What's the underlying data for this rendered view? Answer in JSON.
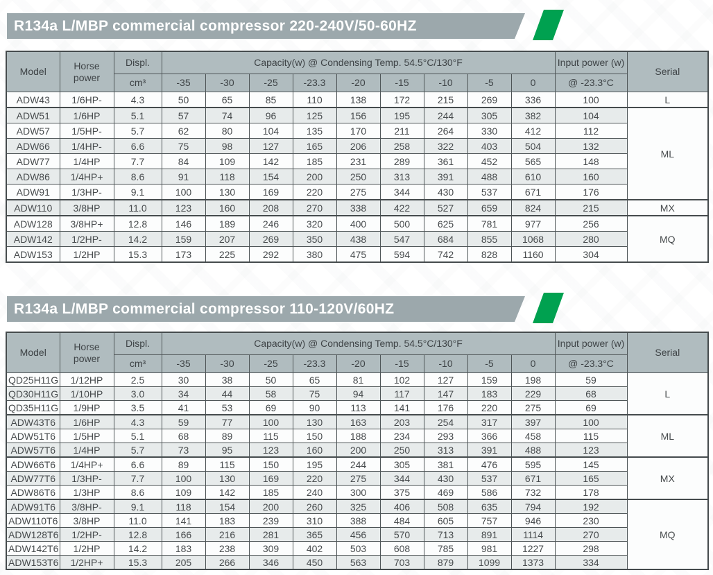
{
  "colors": {
    "title_bar_bg": "#9ca8ac",
    "accent_green": "#00a150",
    "header_bg": "#b0bcbf",
    "row_stripe": "#e7ebeb",
    "border": "#4d5456"
  },
  "tables": [
    {
      "title": "R134a L/MBP commercial compressor 220-240V/50-60HZ",
      "header": {
        "model": "Model",
        "horse_power": "Horse power",
        "displ": "Displ.",
        "displ_unit": "cm³",
        "capacity": "Capacity(w) @ Condensing Temp. 54.5°C/130°F",
        "temps": [
          "-35",
          "-30",
          "-25",
          "-23.3",
          "-20",
          "-15",
          "-10",
          "-5",
          "0"
        ],
        "input_power": "Input power (w)",
        "input_power_sub": "@ -23.3°C",
        "serial": "Serial"
      },
      "rows": [
        {
          "model": "ADW43",
          "hp": "1/6HP-",
          "displ": "4.3",
          "capacity": [
            50,
            65,
            85,
            110,
            138,
            172,
            215,
            269,
            336
          ],
          "input_power": 100
        },
        {
          "model": "ADW51",
          "hp": "1/6HP",
          "displ": "5.1",
          "capacity": [
            57,
            74,
            96,
            125,
            156,
            195,
            244,
            305,
            382
          ],
          "input_power": 104
        },
        {
          "model": "ADW57",
          "hp": "1/5HP-",
          "displ": "5.7",
          "capacity": [
            62,
            80,
            104,
            135,
            170,
            211,
            264,
            330,
            412
          ],
          "input_power": 112
        },
        {
          "model": "ADW66",
          "hp": "1/4HP-",
          "displ": "6.6",
          "capacity": [
            75,
            98,
            127,
            165,
            206,
            258,
            322,
            403,
            504
          ],
          "input_power": 132
        },
        {
          "model": "ADW77",
          "hp": "1/4HP",
          "displ": "7.7",
          "capacity": [
            84,
            109,
            142,
            185,
            231,
            289,
            361,
            452,
            565
          ],
          "input_power": 148
        },
        {
          "model": "ADW86",
          "hp": "1/4HP+",
          "displ": "8.6",
          "capacity": [
            91,
            118,
            154,
            200,
            250,
            313,
            391,
            488,
            610
          ],
          "input_power": 160
        },
        {
          "model": "ADW91",
          "hp": "1/3HP-",
          "displ": "9.1",
          "capacity": [
            100,
            130,
            169,
            220,
            275,
            344,
            430,
            537,
            671
          ],
          "input_power": 176
        },
        {
          "model": "ADW110",
          "hp": "3/8HP",
          "displ": "11.0",
          "capacity": [
            123,
            160,
            208,
            270,
            338,
            422,
            527,
            659,
            824
          ],
          "input_power": 215
        },
        {
          "model": "ADW128",
          "hp": "3/8HP+",
          "displ": "12.8",
          "capacity": [
            146,
            189,
            246,
            320,
            400,
            500,
            625,
            781,
            977
          ],
          "input_power": 256
        },
        {
          "model": "ADW142",
          "hp": "1/2HP-",
          "displ": "14.2",
          "capacity": [
            159,
            207,
            269,
            350,
            438,
            547,
            684,
            855,
            1068
          ],
          "input_power": 280
        },
        {
          "model": "ADW153",
          "hp": "1/2HP",
          "displ": "15.3",
          "capacity": [
            173,
            225,
            292,
            380,
            475,
            594,
            742,
            828,
            1160
          ],
          "input_power": 304
        }
      ],
      "serial_groups": [
        {
          "label": "L",
          "rows": 1
        },
        {
          "label": "ML",
          "rows": 6
        },
        {
          "label": "MX",
          "rows": 1
        },
        {
          "label": "MQ",
          "rows": 3
        }
      ]
    },
    {
      "title": "R134a L/MBP commercial compressor 110-120V/60HZ",
      "header": {
        "model": "Model",
        "horse_power": "Horse power",
        "displ": "Displ.",
        "displ_unit": "cm³",
        "capacity": "Capacity(w) @ Condensing Temp. 54.5°C/130°F",
        "temps": [
          "-35",
          "-30",
          "-25",
          "-23.3",
          "-20",
          "-15",
          "-10",
          "-5",
          "0"
        ],
        "input_power": "Input power (w)",
        "input_power_sub": "@ -23.3°C",
        "serial": "Serial"
      },
      "rows": [
        {
          "model": "QD25H11G",
          "hp": "1/12HP",
          "displ": "2.5",
          "capacity": [
            30,
            38,
            50,
            65,
            81,
            102,
            127,
            159,
            198
          ],
          "input_power": 59
        },
        {
          "model": "QD30H11G",
          "hp": "1/10HP",
          "displ": "3.0",
          "capacity": [
            34,
            44,
            58,
            75,
            94,
            117,
            147,
            183,
            229
          ],
          "input_power": 68
        },
        {
          "model": "QD35H11G",
          "hp": "1/9HP",
          "displ": "3.5",
          "capacity": [
            41,
            53,
            69,
            90,
            113,
            141,
            176,
            220,
            275
          ],
          "input_power": 69
        },
        {
          "model": "ADW43T6",
          "hp": "1/6HP",
          "displ": "4.3",
          "capacity": [
            59,
            77,
            100,
            130,
            163,
            203,
            254,
            317,
            397
          ],
          "input_power": 100
        },
        {
          "model": "ADW51T6",
          "hp": "1/5HP",
          "displ": "5.1",
          "capacity": [
            68,
            89,
            115,
            150,
            188,
            234,
            293,
            366,
            458
          ],
          "input_power": 115
        },
        {
          "model": "ADW57T6",
          "hp": "1/4HP",
          "displ": "5.7",
          "capacity": [
            73,
            95,
            123,
            160,
            200,
            250,
            313,
            391,
            488
          ],
          "input_power": 123
        },
        {
          "model": "ADW66T6",
          "hp": "1/4HP+",
          "displ": "6.6",
          "capacity": [
            89,
            115,
            150,
            195,
            244,
            305,
            381,
            476,
            595
          ],
          "input_power": 145
        },
        {
          "model": "ADW77T6",
          "hp": "1/3HP-",
          "displ": "7.7",
          "capacity": [
            100,
            130,
            169,
            220,
            275,
            344,
            430,
            537,
            671
          ],
          "input_power": 165
        },
        {
          "model": "ADW86T6",
          "hp": "1/3HP",
          "displ": "8.6",
          "capacity": [
            109,
            142,
            185,
            240,
            300,
            375,
            469,
            586,
            732
          ],
          "input_power": 178
        },
        {
          "model": "ADW91T6",
          "hp": "3/8HP-",
          "displ": "9.1",
          "capacity": [
            118,
            154,
            200,
            260,
            325,
            406,
            508,
            635,
            794
          ],
          "input_power": 192
        },
        {
          "model": "ADW110T6",
          "hp": "3/8HP",
          "displ": "11.0",
          "capacity": [
            141,
            183,
            239,
            310,
            388,
            484,
            605,
            757,
            946
          ],
          "input_power": 230
        },
        {
          "model": "ADW128T6",
          "hp": "1/2HP-",
          "displ": "12.8",
          "capacity": [
            166,
            216,
            281,
            365,
            456,
            570,
            713,
            891,
            1114
          ],
          "input_power": 270
        },
        {
          "model": "ADW142T6",
          "hp": "1/2HP",
          "displ": "14.2",
          "capacity": [
            183,
            238,
            309,
            402,
            503,
            608,
            785,
            981,
            1227
          ],
          "input_power": 298
        },
        {
          "model": "ADW153T6",
          "hp": "1/2HP+",
          "displ": "15.3",
          "capacity": [
            205,
            266,
            346,
            450,
            563,
            703,
            879,
            1099,
            1373
          ],
          "input_power": 334
        }
      ],
      "serial_groups": [
        {
          "label": "L",
          "rows": 3
        },
        {
          "label": "ML",
          "rows": 3
        },
        {
          "label": "MX",
          "rows": 3
        },
        {
          "label": "MQ",
          "rows": 5
        }
      ]
    }
  ]
}
